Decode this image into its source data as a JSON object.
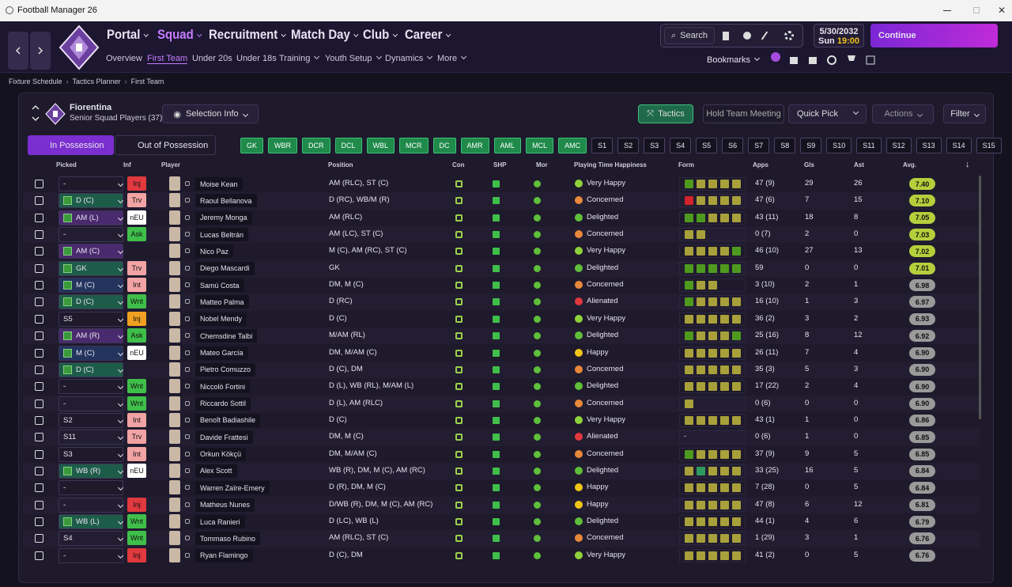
{
  "window": {
    "title": "Football Manager 26"
  },
  "nav": {
    "main": [
      "Portal",
      "Squad",
      "Recruitment",
      "Match Day",
      "Club",
      "Career"
    ],
    "sub": [
      "Overview",
      "First Team",
      "Under 20s",
      "Under 18s",
      "Training",
      "Youth Setup",
      "Dynamics",
      "More"
    ],
    "search": "Search",
    "bookmarks": "Bookmarks",
    "date": "5/30/2032",
    "day": "Sun",
    "time": "19:00",
    "continue": "Continue"
  },
  "breadcrumb": [
    "Fixture Schedule",
    "Tactics Planner",
    "First Team"
  ],
  "team": {
    "name": "Fiorentina",
    "subtitle": "Senior Squad Players (37)"
  },
  "buttons": {
    "selection_info": "Selection Info",
    "tactics": "Tactics",
    "meeting": "Hold Team Meeting",
    "quick_pick": "Quick Pick",
    "actions": "Actions",
    "filter": "Filter"
  },
  "tabs": [
    "In Possession",
    "Out of Possession"
  ],
  "positions": [
    "GK",
    "WBR",
    "DCR",
    "DCL",
    "WBL",
    "MCR",
    "DC",
    "AMR",
    "AML",
    "MCL",
    "AMC",
    "S1",
    "S2",
    "S3",
    "S4",
    "S5",
    "S6",
    "S7",
    "S8",
    "S9",
    "S10",
    "S11",
    "S12",
    "S13",
    "S14",
    "S15"
  ],
  "table": {
    "columns": [
      "Picked",
      "Inf",
      "Player",
      "Position",
      "Con",
      "SHP",
      "Mor",
      "Playing Time Happiness",
      "Form",
      "Apps",
      "Gls",
      "Ast",
      "Avg."
    ],
    "rows": [
      {
        "picked": "-",
        "picked_color": null,
        "inf": "Inj",
        "inf_color": "#e0393e",
        "player": "Moise Kean",
        "position": "AM (RLC), ST (C)",
        "happiness": "Very Happy",
        "happy_color": "#8fd13a",
        "form": [
          "#4e9a1e",
          "#a8a03a",
          "#a8a03a",
          "#a8a03a",
          "#a8a03a"
        ],
        "apps": "47 (9)",
        "gls": "29",
        "ast": "26",
        "avg": "7.40",
        "avg_color": "#b5cf3c"
      },
      {
        "picked": "D (C)",
        "picked_color": "#1e5c4a",
        "inf": "Trv",
        "inf_color": "#f2a3a3",
        "player": "Raoul Bellanova",
        "position": "D (RC), WB/M (R)",
        "happiness": "Concerned",
        "happy_color": "#e8883a",
        "form": [
          "#d0232a",
          "#a8a03a",
          "#a8a03a",
          "#a8a03a",
          "#a8a03a"
        ],
        "apps": "47 (6)",
        "gls": "7",
        "ast": "15",
        "avg": "7.10",
        "avg_color": "#b5cf3c"
      },
      {
        "picked": "AM (L)",
        "picked_color": "#4a2a6e",
        "inf": "nEU",
        "inf_color": "#ffffff",
        "player": "Jeremy Monga",
        "position": "AM (RLC)",
        "happiness": "Delighted",
        "happy_color": "#5fbf3a",
        "form": [
          "#4e9a1e",
          "#4e9a1e",
          "#a8a03a",
          "#a8a03a",
          "#a8a03a"
        ],
        "apps": "43 (11)",
        "gls": "18",
        "ast": "8",
        "avg": "7.05",
        "avg_color": "#b5cf3c"
      },
      {
        "picked": "-",
        "picked_color": null,
        "inf": "Ask",
        "inf_color": "#3fbf4a",
        "player": "Lucas Beltrán",
        "position": "AM (LC), ST (C)",
        "happiness": "Concerned",
        "happy_color": "#e8883a",
        "form": [
          "#a8a03a",
          "#a8a03a"
        ],
        "apps": "0 (7)",
        "gls": "2",
        "ast": "0",
        "avg": "7.03",
        "avg_color": "#b5cf3c"
      },
      {
        "picked": "AM (C)",
        "picked_color": "#4a2a6e",
        "inf": null,
        "inf_color": null,
        "player": "Nico Paz",
        "position": "M (C), AM (RC), ST (C)",
        "happiness": "Very Happy",
        "happy_color": "#8fd13a",
        "form": [
          "#a8a03a",
          "#a8a03a",
          "#a8a03a",
          "#a8a03a",
          "#4e9a1e"
        ],
        "apps": "46 (10)",
        "gls": "27",
        "ast": "13",
        "avg": "7.02",
        "avg_color": "#b5cf3c"
      },
      {
        "picked": "GK",
        "picked_color": "#1e5c4a",
        "inf": "Trv",
        "inf_color": "#f2a3a3",
        "player": "Diego Mascardi",
        "position": "GK",
        "happiness": "Delighted",
        "happy_color": "#5fbf3a",
        "form": [
          "#4e9a1e",
          "#4e9a1e",
          "#4e9a1e",
          "#4e9a1e",
          "#4e9a1e"
        ],
        "apps": "59",
        "gls": "0",
        "ast": "0",
        "avg": "7.01",
        "avg_color": "#b5cf3c"
      },
      {
        "picked": "M (C)",
        "picked_color": "#23345e",
        "inf": "Int",
        "inf_color": "#f2a3a3",
        "player": "Samú Costa",
        "position": "DM, M (C)",
        "happiness": "Concerned",
        "happy_color": "#e8883a",
        "form": [
          "#4e9a1e",
          "#a8a03a",
          "#a8a03a"
        ],
        "apps": "3 (10)",
        "gls": "2",
        "ast": "1",
        "avg": "6.98",
        "avg_color": "#9a9a9a"
      },
      {
        "picked": "D (C)",
        "picked_color": "#1e5c4a",
        "inf": "Wnt",
        "inf_color": "#3fbf4a",
        "player": "Matteo Palma",
        "position": "D (RC)",
        "happiness": "Alienated",
        "happy_color": "#e0393e",
        "form": [
          "#4e9a1e",
          "#a8a03a",
          "#a8a03a",
          "#a8a03a",
          "#a8a03a"
        ],
        "apps": "16 (10)",
        "gls": "1",
        "ast": "3",
        "avg": "6.97",
        "avg_color": "#9a9a9a"
      },
      {
        "picked": "S5",
        "picked_color": null,
        "inf": "Inj",
        "inf_color": "#f0a020",
        "player": "Nobel Mendy",
        "position": "D (C)",
        "happiness": "Very Happy",
        "happy_color": "#8fd13a",
        "form": [
          "#a8a03a",
          "#a8a03a",
          "#a8a03a",
          "#a8a03a",
          "#a8a03a"
        ],
        "apps": "36 (2)",
        "gls": "3",
        "ast": "2",
        "avg": "6.93",
        "avg_color": "#9a9a9a"
      },
      {
        "picked": "AM (R)",
        "picked_color": "#4a2a6e",
        "inf": "Ask",
        "inf_color": "#3fbf4a",
        "player": "Chemsdine Talbi",
        "position": "M/AM (RL)",
        "happiness": "Delighted",
        "happy_color": "#5fbf3a",
        "form": [
          "#4e9a1e",
          "#a8a03a",
          "#a8a03a",
          "#a8a03a",
          "#4e9a1e"
        ],
        "apps": "25 (16)",
        "gls": "8",
        "ast": "12",
        "avg": "6.92",
        "avg_color": "#9a9a9a"
      },
      {
        "picked": "M (C)",
        "picked_color": "#23345e",
        "inf": "nEU",
        "inf_color": "#ffffff",
        "player": "Mateo García",
        "position": "DM, M/AM (C)",
        "happiness": "Happy",
        "happy_color": "#f0c419",
        "form": [
          "#a8a03a",
          "#a8a03a",
          "#a8a03a",
          "#a8a03a",
          "#a8a03a"
        ],
        "apps": "26 (11)",
        "gls": "7",
        "ast": "4",
        "avg": "6.90",
        "avg_color": "#9a9a9a"
      },
      {
        "picked": "D (C)",
        "picked_color": "#1e5c4a",
        "inf": null,
        "inf_color": null,
        "player": "Pietro Comuzzo",
        "position": "D (C), DM",
        "happiness": "Concerned",
        "happy_color": "#e8883a",
        "form": [
          "#a8a03a",
          "#a8a03a",
          "#a8a03a",
          "#a8a03a",
          "#a8a03a"
        ],
        "apps": "35 (3)",
        "gls": "5",
        "ast": "3",
        "avg": "6.90",
        "avg_color": "#9a9a9a"
      },
      {
        "picked": "-",
        "picked_color": null,
        "inf": "Wnt",
        "inf_color": "#3fbf4a",
        "player": "Niccolò Fortini",
        "position": "D (L), WB (RL), M/AM (L)",
        "happiness": "Delighted",
        "happy_color": "#5fbf3a",
        "form": [
          "#a8a03a",
          "#a8a03a",
          "#a8a03a",
          "#a8a03a",
          "#a8a03a"
        ],
        "apps": "17 (22)",
        "gls": "2",
        "ast": "4",
        "avg": "6.90",
        "avg_color": "#9a9a9a"
      },
      {
        "picked": "-",
        "picked_color": null,
        "inf": "Wnt",
        "inf_color": "#3fbf4a",
        "player": "Riccardo Sottil",
        "position": "D (L), AM (RLC)",
        "happiness": "Concerned",
        "happy_color": "#e8883a",
        "form": [
          "#a8a03a"
        ],
        "apps": "0 (6)",
        "gls": "0",
        "ast": "0",
        "avg": "6.90",
        "avg_color": "#9a9a9a"
      },
      {
        "picked": "S2",
        "picked_color": null,
        "inf": "Int",
        "inf_color": "#f2a3a3",
        "player": "Benoît Badiashile",
        "position": "D (C)",
        "happiness": "Very Happy",
        "happy_color": "#8fd13a",
        "form": [
          "#a8a03a",
          "#a8a03a",
          "#a8a03a",
          "#a8a03a",
          "#a8a03a"
        ],
        "apps": "43 (1)",
        "gls": "1",
        "ast": "0",
        "avg": "6.86",
        "avg_color": "#9a9a9a"
      },
      {
        "picked": "S11",
        "picked_color": null,
        "inf": "Trv",
        "inf_color": "#f2a3a3",
        "player": "Davide Frattesi",
        "position": "DM, M (C)",
        "happiness": "Alienated",
        "happy_color": "#e0393e",
        "form": "-",
        "apps": "0 (6)",
        "gls": "1",
        "ast": "0",
        "avg": "6.85",
        "avg_color": "#9a9a9a"
      },
      {
        "picked": "S3",
        "picked_color": null,
        "inf": "Int",
        "inf_color": "#f2a3a3",
        "player": "Orkun Kökçü",
        "position": "DM, M/AM (C)",
        "happiness": "Concerned",
        "happy_color": "#e8883a",
        "form": [
          "#4e9a1e",
          "#a8a03a",
          "#a8a03a",
          "#a8a03a",
          "#a8a03a"
        ],
        "apps": "37 (9)",
        "gls": "9",
        "ast": "5",
        "avg": "6.85",
        "avg_color": "#9a9a9a"
      },
      {
        "picked": "WB (R)",
        "picked_color": "#1e5c4a",
        "inf": "nEU",
        "inf_color": "#ffffff",
        "player": "Alex Scott",
        "position": "WB (R), DM, M (C), AM (RC)",
        "happiness": "Delighted",
        "happy_color": "#5fbf3a",
        "form": [
          "#a8a03a",
          "#2f9a5e",
          "#a8a03a",
          "#a8a03a",
          "#a8a03a"
        ],
        "apps": "33 (25)",
        "gls": "16",
        "ast": "5",
        "avg": "6.84",
        "avg_color": "#9a9a9a"
      },
      {
        "picked": "-",
        "picked_color": null,
        "inf": null,
        "inf_color": null,
        "player": "Warren Zaïre-Emery",
        "position": "D (R), DM, M (C)",
        "happiness": "Happy",
        "happy_color": "#f0c419",
        "form": [
          "#a8a03a",
          "#a8a03a",
          "#a8a03a",
          "#a8a03a",
          "#a8a03a"
        ],
        "apps": "7 (28)",
        "gls": "0",
        "ast": "5",
        "avg": "6.84",
        "avg_color": "#9a9a9a"
      },
      {
        "picked": "-",
        "picked_color": null,
        "inf": "Inj",
        "inf_color": "#e0393e",
        "player": "Matheus Nunes",
        "position": "D/WB (R), DM, M (C), AM (RC)",
        "happiness": "Happy",
        "happy_color": "#f0c419",
        "form": [
          "#a8a03a",
          "#a8a03a",
          "#a8a03a",
          "#a8a03a",
          "#a8a03a"
        ],
        "apps": "47 (8)",
        "gls": "6",
        "ast": "12",
        "avg": "6.81",
        "avg_color": "#9a9a9a"
      },
      {
        "picked": "WB (L)",
        "picked_color": "#1e5c4a",
        "inf": "Wnt",
        "inf_color": "#3fbf4a",
        "player": "Luca Ranieri",
        "position": "D (LC), WB (L)",
        "happiness": "Delighted",
        "happy_color": "#5fbf3a",
        "form": [
          "#a8a03a",
          "#a8a03a",
          "#a8a03a",
          "#a8a03a",
          "#a8a03a"
        ],
        "apps": "44 (1)",
        "gls": "4",
        "ast": "6",
        "avg": "6.79",
        "avg_color": "#9a9a9a"
      },
      {
        "picked": "S4",
        "picked_color": null,
        "inf": "Wnt",
        "inf_color": "#3fbf4a",
        "player": "Tommaso Rubino",
        "position": "AM (RLC), ST (C)",
        "happiness": "Concerned",
        "happy_color": "#e8883a",
        "form": [
          "#a8a03a",
          "#a8a03a",
          "#a8a03a",
          "#a8a03a",
          "#a8a03a"
        ],
        "apps": "1 (29)",
        "gls": "3",
        "ast": "1",
        "avg": "6.76",
        "avg_color": "#9a9a9a"
      },
      {
        "picked": "-",
        "picked_color": null,
        "inf": "Inj",
        "inf_color": "#e0393e",
        "player": "Ryan Flamingo",
        "position": "D (C), DM",
        "happiness": "Very Happy",
        "happy_color": "#8fd13a",
        "form": [
          "#a8a03a",
          "#a8a03a",
          "#a8a03a",
          "#a8a03a",
          "#a8a03a"
        ],
        "apps": "41 (2)",
        "gls": "0",
        "ast": "5",
        "avg": "6.76",
        "avg_color": "#9a9a9a"
      }
    ]
  }
}
